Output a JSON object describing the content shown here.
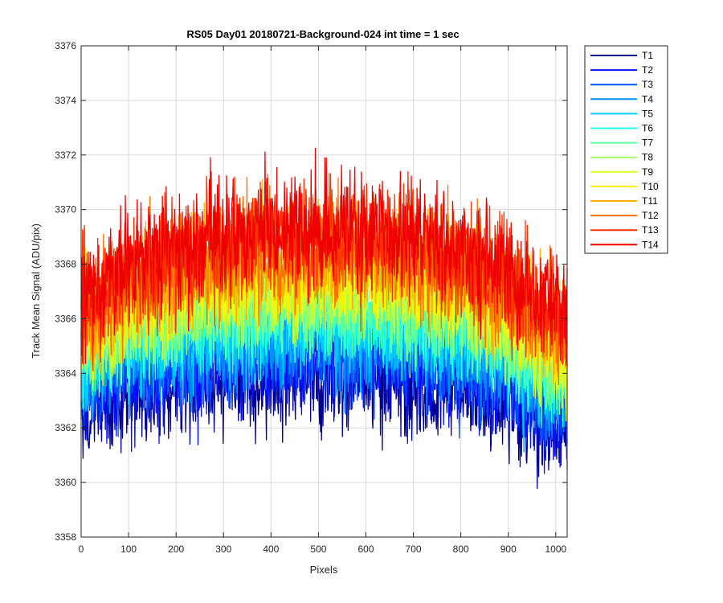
{
  "chart_data": {
    "type": "line",
    "title": "RS05 Day01 20180721-Background-024 int time = 1 sec",
    "xlabel": "Pixels",
    "ylabel": "Track Mean Signal (ADU/pix)",
    "xlim": [
      0,
      1024
    ],
    "ylim": [
      3358,
      3376
    ],
    "xticks": [
      0,
      100,
      200,
      300,
      400,
      500,
      600,
      700,
      800,
      900,
      1000
    ],
    "yticks": [
      3358,
      3360,
      3362,
      3364,
      3366,
      3368,
      3370,
      3372,
      3374,
      3376
    ],
    "grid": true,
    "legend_position": "outside-top-right",
    "points_per_series": 1024,
    "noise_note": "each trace is a noisy profile; values below are the approximate mean level at the listed x positions",
    "profile_x": [
      0,
      100,
      200,
      300,
      400,
      500,
      600,
      700,
      800,
      900,
      1024
    ],
    "series": [
      {
        "name": "T1",
        "color": "#00008f",
        "mean": [
          3362.8,
          3363.3,
          3363.5,
          3363.7,
          3363.8,
          3364.0,
          3364.0,
          3363.8,
          3363.3,
          3362.8,
          3361.8
        ],
        "noise_amp": 1.6
      },
      {
        "name": "T2",
        "color": "#0010ff",
        "mean": [
          3363.2,
          3363.8,
          3364.0,
          3364.2,
          3364.3,
          3364.5,
          3364.5,
          3364.3,
          3363.9,
          3363.3,
          3362.2
        ],
        "noise_amp": 1.5
      },
      {
        "name": "T3",
        "color": "#0050ff",
        "mean": [
          3363.6,
          3364.2,
          3364.5,
          3364.7,
          3364.8,
          3365.0,
          3365.0,
          3364.8,
          3364.4,
          3363.8,
          3362.6
        ],
        "noise_amp": 1.5
      },
      {
        "name": "T4",
        "color": "#0090ff",
        "mean": [
          3364.0,
          3364.6,
          3365.0,
          3365.2,
          3365.3,
          3365.4,
          3365.4,
          3365.2,
          3364.8,
          3364.2,
          3363.0
        ],
        "noise_amp": 1.5
      },
      {
        "name": "T5",
        "color": "#00d0ff",
        "mean": [
          3364.3,
          3365.0,
          3365.4,
          3365.6,
          3365.7,
          3365.8,
          3365.8,
          3365.6,
          3365.2,
          3364.6,
          3363.4
        ],
        "noise_amp": 1.5
      },
      {
        "name": "T6",
        "color": "#20ffdf",
        "mean": [
          3364.6,
          3365.3,
          3365.7,
          3366.0,
          3366.1,
          3366.2,
          3366.2,
          3366.0,
          3365.6,
          3365.0,
          3363.8
        ],
        "noise_amp": 1.5
      },
      {
        "name": "T7",
        "color": "#60ff9f",
        "mean": [
          3364.9,
          3365.6,
          3366.1,
          3366.4,
          3366.5,
          3366.6,
          3366.6,
          3366.4,
          3366.0,
          3365.3,
          3364.1
        ],
        "noise_amp": 1.5
      },
      {
        "name": "T8",
        "color": "#9fff60",
        "mean": [
          3365.2,
          3365.9,
          3366.4,
          3366.7,
          3366.9,
          3367.0,
          3367.0,
          3366.8,
          3366.3,
          3365.6,
          3364.4
        ],
        "noise_amp": 1.5
      },
      {
        "name": "T9",
        "color": "#dfff20",
        "mean": [
          3365.5,
          3366.2,
          3366.8,
          3367.1,
          3367.3,
          3367.4,
          3367.4,
          3367.2,
          3366.7,
          3366.0,
          3364.7
        ],
        "noise_amp": 1.5
      },
      {
        "name": "T10",
        "color": "#ffef00",
        "mean": [
          3365.8,
          3366.6,
          3367.2,
          3367.5,
          3367.7,
          3367.8,
          3367.8,
          3367.6,
          3367.1,
          3366.3,
          3365.0
        ],
        "noise_amp": 1.5
      },
      {
        "name": "T11",
        "color": "#ffaf00",
        "mean": [
          3366.1,
          3367.0,
          3367.6,
          3367.9,
          3368.1,
          3368.2,
          3368.2,
          3368.0,
          3367.5,
          3366.7,
          3365.3
        ],
        "noise_amp": 1.6
      },
      {
        "name": "T12",
        "color": "#ff7000",
        "mean": [
          3366.4,
          3367.3,
          3368.0,
          3368.3,
          3368.5,
          3368.6,
          3368.6,
          3368.4,
          3367.9,
          3367.0,
          3365.6
        ],
        "noise_amp": 1.7
      },
      {
        "name": "T13",
        "color": "#ff3000",
        "mean": [
          3366.7,
          3367.6,
          3368.3,
          3368.7,
          3368.9,
          3369.0,
          3369.0,
          3368.8,
          3368.3,
          3367.4,
          3365.9
        ],
        "noise_amp": 1.7
      },
      {
        "name": "T14",
        "color": "#ef0000",
        "mean": [
          3367.0,
          3367.9,
          3368.6,
          3369.0,
          3369.2,
          3369.3,
          3369.3,
          3369.1,
          3368.6,
          3367.7,
          3366.2
        ],
        "noise_amp": 1.7
      }
    ]
  }
}
